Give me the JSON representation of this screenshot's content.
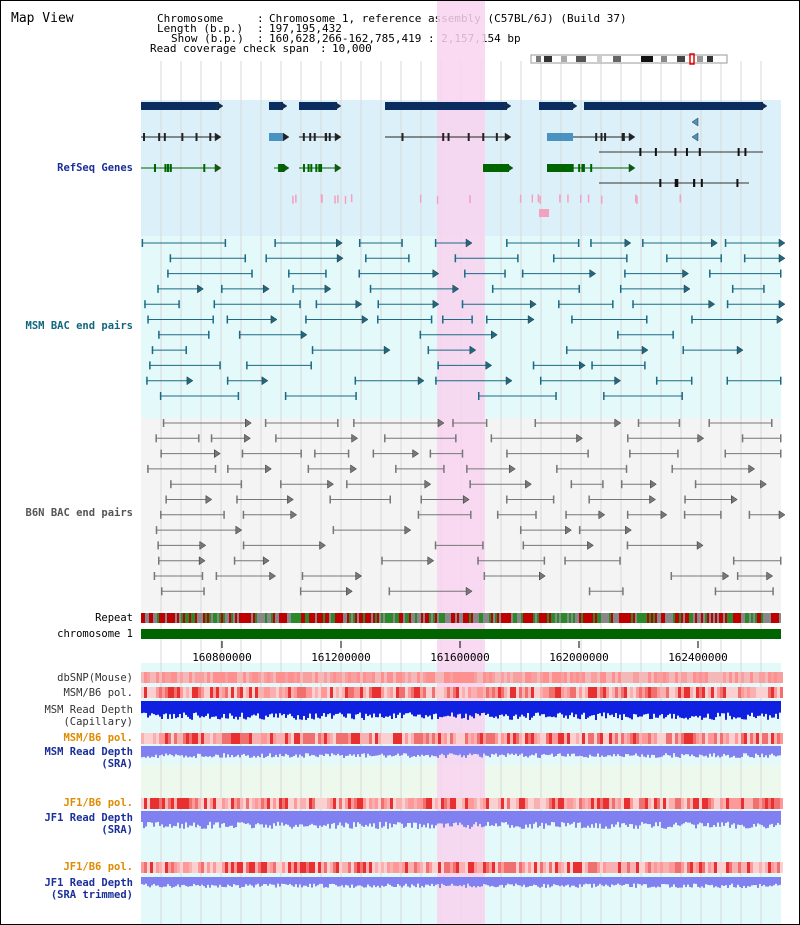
{
  "title": "Map View",
  "info": {
    "chromosome_label": "Chromosome",
    "chromosome_value": "Chromosome 1, reference assembly (C57BL/6J) (Build 37)",
    "length_label": "Length (b.p.)",
    "length_value": "197,195,432",
    "show_label": "Show (b.p.)",
    "show_value": "160,628,266-162,785,419 : 2,157,154 bp",
    "coverage_label": "Read coverage check span",
    "coverage_value": "10,000"
  },
  "tracks": {
    "refseq": "RefSeq Genes",
    "msm_bac": "MSM BAC end pairs",
    "b6n_bac": "B6N BAC end pairs",
    "repeat": "Repeat",
    "chromosome": "chromosome 1",
    "dbsnp": "dbSNP(Mouse)",
    "msm_b6_pol_1": "MSM/B6 pol.",
    "msm_read_cap_1": "MSM Read Depth",
    "msm_read_cap_2": "(Capillary)",
    "msm_b6_pol_2": "MSM/B6 pol.",
    "msm_read_sra_1": "MSM Read Depth",
    "msm_read_sra_2": "(SRA)",
    "jf1_b6_pol_1": "JF1/B6 pol.",
    "jf1_read_sra_1": "JF1 Read Depth",
    "jf1_read_sra_2": "(SRA)",
    "jf1_b6_pol_2": "JF1/B6 pol.",
    "jf1_read_trim_1": "JF1 Read Depth",
    "jf1_read_trim_2": "(SRA trimmed)"
  },
  "axis": {
    "ticks": [
      "160800000",
      "161200000",
      "161600000",
      "162000000",
      "162400000"
    ]
  },
  "colors": {
    "refseq_bg": "#dcf0fa",
    "bac_bg": "#e4f9f9",
    "b6n_bg": "#f4f4f4",
    "highlight": "#f8d4f0",
    "gene_navy": "#0b2c5e",
    "gene_green": "#006400",
    "gene_blue": "#4a92c0",
    "bac_line": "#1a6a86",
    "b6n_line": "#777777",
    "chrom_green": "#006400",
    "msm_depth": "#1020e0",
    "sra_depth": "#8080f0"
  }
}
